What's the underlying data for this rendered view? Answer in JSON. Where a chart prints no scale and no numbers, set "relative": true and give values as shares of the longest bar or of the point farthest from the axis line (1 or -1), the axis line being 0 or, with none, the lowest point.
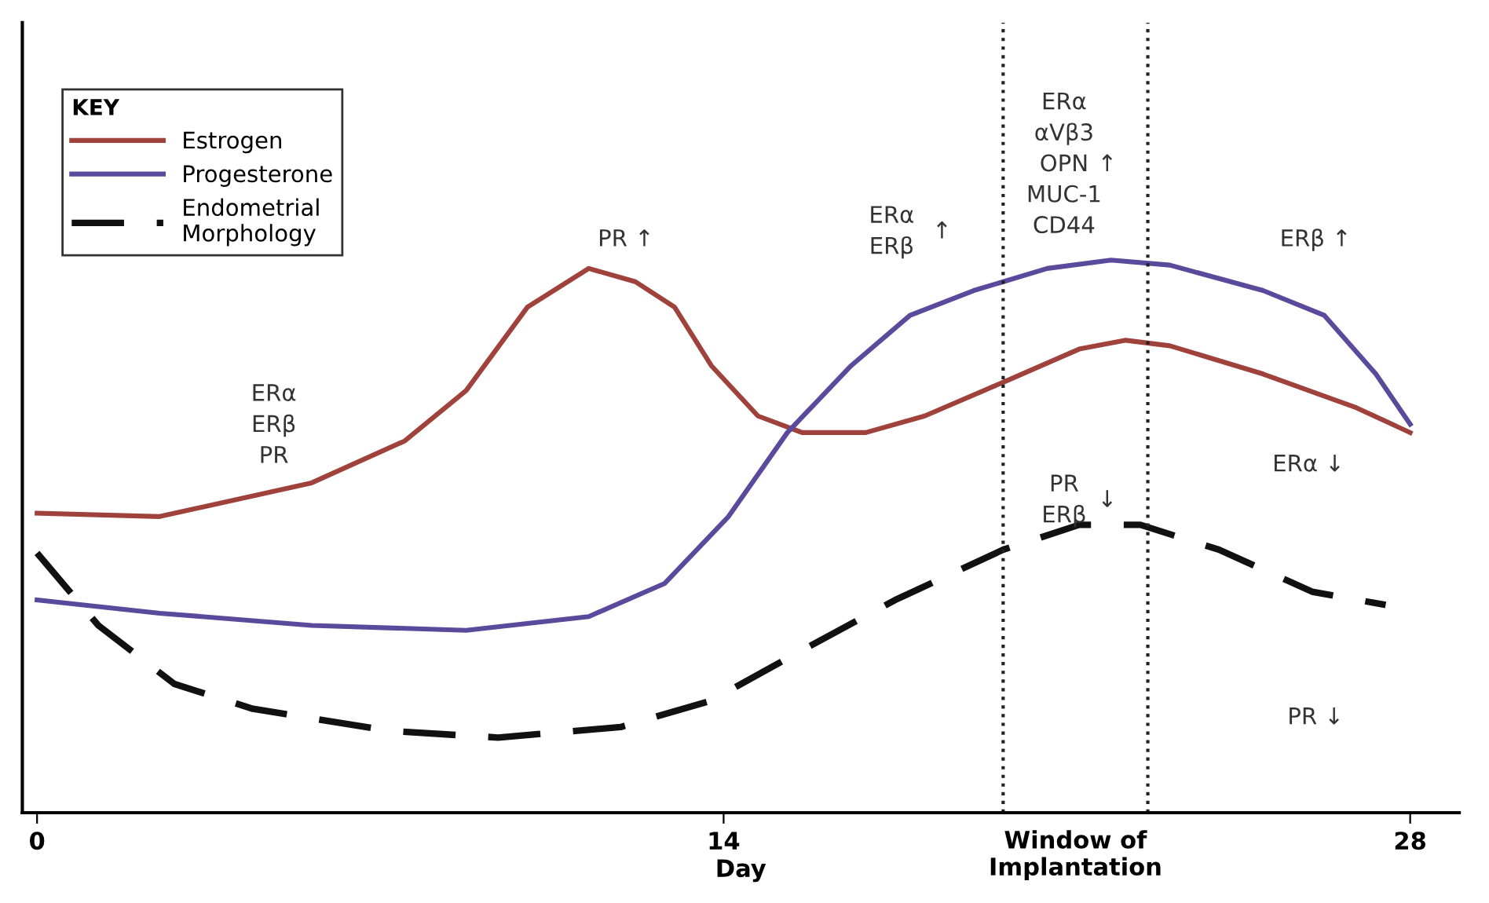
{
  "chart_data": {
    "type": "line",
    "relative": true,
    "xlabel": "Day",
    "legend_title": "KEY",
    "legend": "top left",
    "grid": false,
    "tick_labels": "x",
    "xlim": [
      -0.3,
      29
    ],
    "xticks": [
      0,
      14,
      28
    ],
    "series": [
      {
        "name": "Estrogen",
        "color": "#a0423c",
        "line_style": "solid",
        "x": [
          0,
          2.5,
          5.6,
          7.5,
          8.75,
          10,
          11.25,
          12.2,
          13,
          13.75,
          14.7,
          15.6,
          16.9,
          18.1,
          19.7,
          21.25,
          22.2,
          23.1,
          25,
          26.9,
          28
        ],
        "values": [
          0.542,
          0.536,
          0.597,
          0.673,
          0.764,
          0.915,
          0.985,
          0.961,
          0.915,
          0.809,
          0.718,
          0.688,
          0.688,
          0.718,
          0.779,
          0.839,
          0.855,
          0.845,
          0.794,
          0.733,
          0.688
        ]
      },
      {
        "name": "Progesterone",
        "color": "#5a4a9c",
        "line_style": "solid",
        "x": [
          0,
          2.5,
          5.6,
          8.75,
          11.25,
          12.8,
          14.1,
          15.3,
          16.6,
          17.8,
          19.1,
          20.6,
          21.9,
          23.1,
          25,
          26.25,
          27.3,
          28
        ],
        "values": [
          0.385,
          0.361,
          0.339,
          0.33,
          0.355,
          0.415,
          0.536,
          0.688,
          0.809,
          0.9,
          0.945,
          0.985,
          1.0,
          0.991,
          0.945,
          0.9,
          0.794,
          0.703
        ]
      },
      {
        "name": "Endometrial\nMorphology",
        "color": "#111111",
        "line_style": "dashed",
        "x": [
          0,
          1.25,
          2.8,
          4.4,
          7.2,
          9.4,
          11.9,
          13.75,
          15.6,
          17.5,
          19.7,
          21.25,
          22.5,
          24.1,
          26,
          27.5
        ],
        "values": [
          0.47,
          0.339,
          0.233,
          0.188,
          0.148,
          0.136,
          0.155,
          0.203,
          0.294,
          0.385,
          0.476,
          0.521,
          0.521,
          0.476,
          0.4,
          0.376
        ]
      }
    ],
    "ref_lines": [
      {
        "axis": "x",
        "value": 19.7,
        "label": "Window of\nImplantation",
        "color": "#222222",
        "line_style": "dotted"
      },
      {
        "axis": "x",
        "value": 22.65,
        "color": "#222222",
        "line_style": "dotted"
      }
    ],
    "annotations": [
      "ERα\nERβ\nPR",
      "PR ↑",
      "ERα\nERβ",
      "↑",
      "ERα\nαVβ3\nOPN\nMUC-1\nCD44",
      "↑",
      "ERβ ↑",
      "ERα ↓",
      "PR\nERβ",
      "↓",
      "PR ↓"
    ]
  }
}
